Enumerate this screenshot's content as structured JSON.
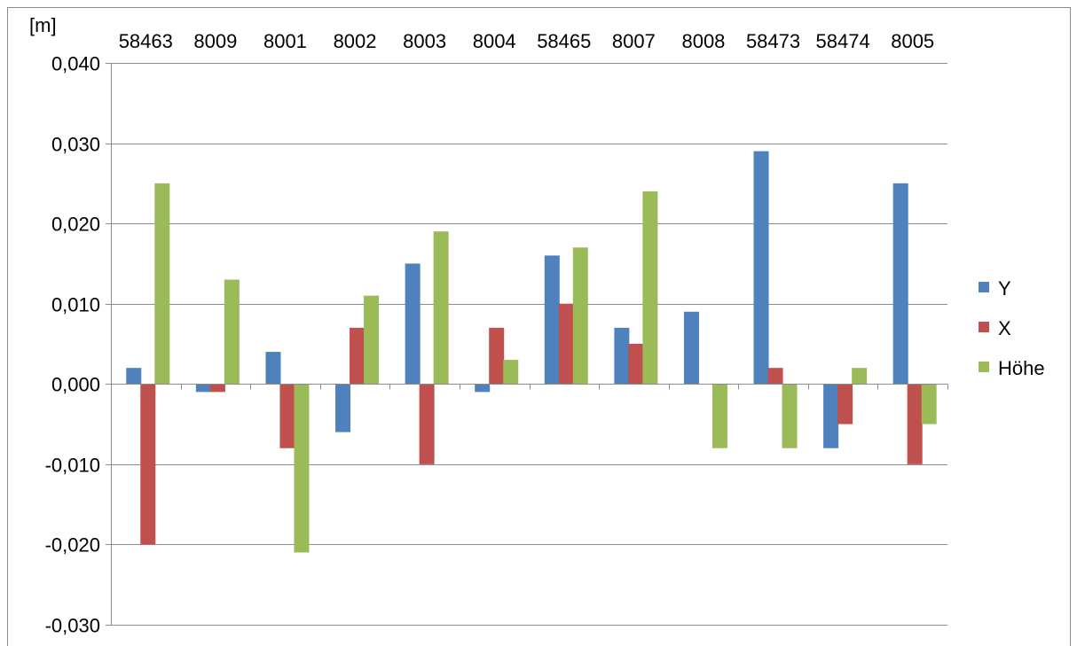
{
  "chart_data": {
    "type": "bar",
    "title": "",
    "ylabel": "[m]",
    "xlabel": "",
    "categories": [
      "58463",
      "8009",
      "8001",
      "8002",
      "8003",
      "8004",
      "58465",
      "8007",
      "8008",
      "58473",
      "58474",
      "8005"
    ],
    "series": [
      {
        "name": "Y",
        "color": "#4F81BD",
        "values": [
          0.002,
          -0.001,
          0.004,
          -0.006,
          0.015,
          -0.001,
          0.016,
          0.007,
          0.009,
          0.029,
          -0.008,
          0.025
        ]
      },
      {
        "name": "X",
        "color": "#C0504D",
        "values": [
          -0.02,
          -0.001,
          -0.008,
          0.007,
          -0.01,
          0.007,
          0.01,
          0.005,
          0.0,
          0.002,
          -0.005,
          -0.01
        ]
      },
      {
        "name": "Höhe",
        "color": "#9BBB59",
        "values": [
          0.025,
          0.013,
          -0.021,
          0.011,
          0.019,
          0.003,
          0.017,
          0.024,
          -0.008,
          -0.008,
          0.002,
          -0.005
        ]
      }
    ],
    "ylim": [
      -0.03,
      0.04
    ],
    "yticks": [
      0.04,
      0.03,
      0.02,
      0.01,
      0.0,
      -0.01,
      -0.02,
      -0.03
    ],
    "ytick_labels": [
      "0,040",
      "0,030",
      "0,020",
      "0,010",
      "0,000",
      "-0,010",
      "-0,020",
      "-0,030"
    ],
    "category_labels_position": "top",
    "grid": true,
    "legend": "right"
  }
}
